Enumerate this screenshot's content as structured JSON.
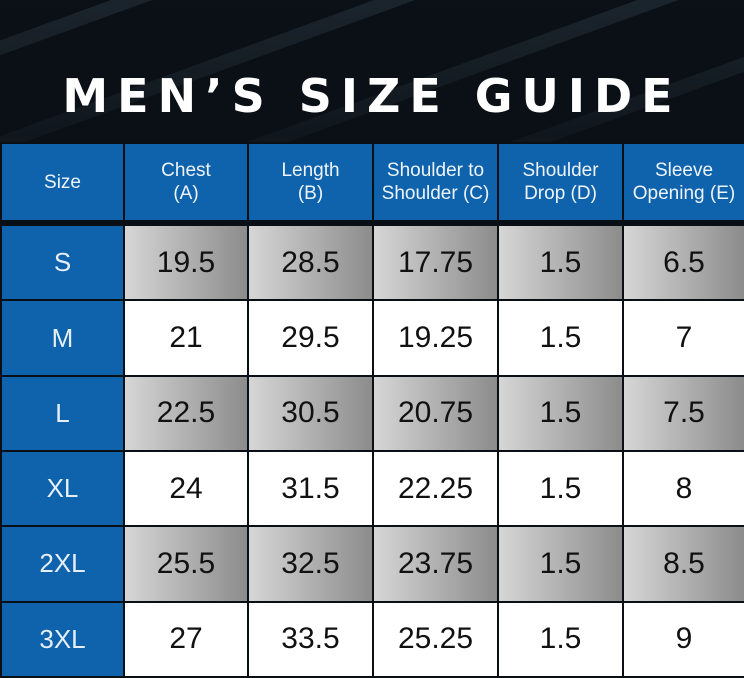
{
  "title": "MEN’S SIZE GUIDE",
  "colors": {
    "header_blue": "#0f62ac",
    "background": "#0d1218"
  },
  "chart_data": {
    "type": "table",
    "title": "MEN’S SIZE GUIDE",
    "columns": [
      "Size",
      "Chest (A)",
      "Length (B)",
      "Shoulder to Shoulder (C)",
      "Shoulder Drop (D)",
      "Sleeve Opening (E)"
    ],
    "header_lines": [
      [
        "Size"
      ],
      [
        "Chest",
        "(A)"
      ],
      [
        "Length",
        "(B)"
      ],
      [
        "Shoulder to",
        "Shoulder (C)"
      ],
      [
        "Shoulder",
        "Drop (D)"
      ],
      [
        "Sleeve",
        "Opening (E)"
      ]
    ],
    "rows": [
      [
        "S",
        "19.5",
        "28.5",
        "17.75",
        "1.5",
        "6.5"
      ],
      [
        "M",
        "21",
        "29.5",
        "19.25",
        "1.5",
        "7"
      ],
      [
        "L",
        "22.5",
        "30.5",
        "20.75",
        "1.5",
        "7.5"
      ],
      [
        "XL",
        "24",
        "31.5",
        "22.25",
        "1.5",
        "8"
      ],
      [
        "2XL",
        "25.5",
        "32.5",
        "23.75",
        "1.5",
        "8.5"
      ],
      [
        "3XL",
        "27",
        "33.5",
        "25.25",
        "1.5",
        "9"
      ]
    ]
  }
}
